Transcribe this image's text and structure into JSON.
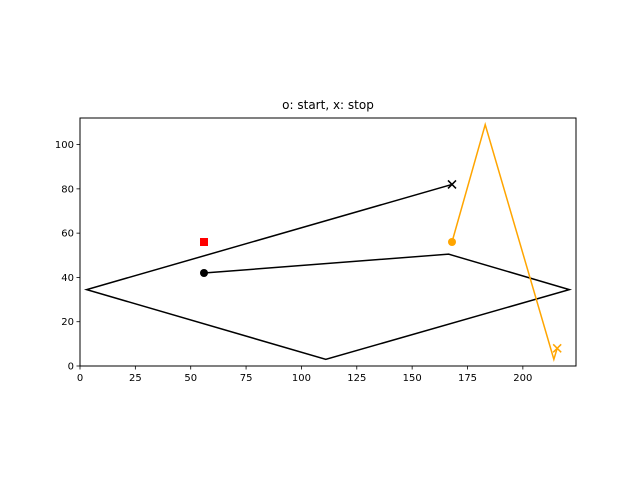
{
  "chart_data": {
    "type": "line",
    "title": "o: start, x: stop",
    "xlabel": "",
    "ylabel": "",
    "xlim": [
      0,
      224
    ],
    "ylim": [
      0,
      112
    ],
    "xticks": [
      0,
      25,
      50,
      75,
      100,
      125,
      150,
      175,
      200
    ],
    "yticks": [
      0,
      20,
      40,
      60,
      80,
      100
    ],
    "grid": false,
    "series": [
      {
        "color": "#000000",
        "points": [
          [
            56,
            42
          ],
          [
            166.5,
            50.5
          ],
          [
            221,
            34.5
          ],
          [
            111,
            3
          ],
          [
            3,
            34.5
          ],
          [
            168,
            82
          ]
        ],
        "start_marker": "circle",
        "stop_marker": "x"
      },
      {
        "color": "#ffa500",
        "points": [
          [
            168,
            56
          ],
          [
            183,
            109
          ],
          [
            214,
            3
          ],
          [
            215.5,
            8
          ]
        ],
        "start_marker": "circle",
        "stop_marker": "x"
      }
    ],
    "extra_points": [
      {
        "x": 56,
        "y": 56,
        "marker": "square",
        "color": "#ff0000"
      }
    ]
  }
}
